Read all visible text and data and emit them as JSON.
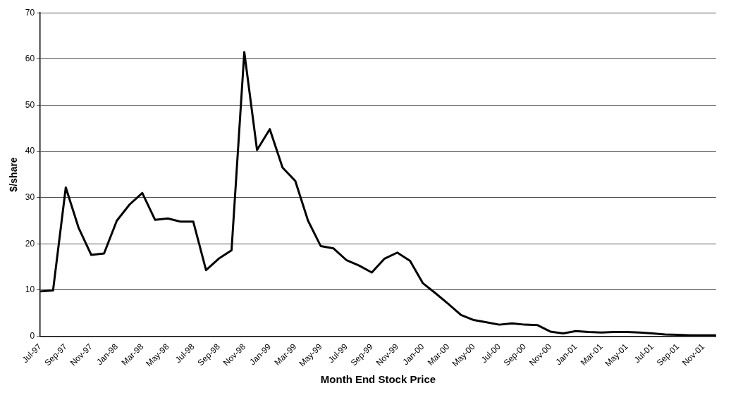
{
  "chart_data": {
    "type": "line",
    "xlabel": "Month End Stock Price",
    "ylabel": "$/share",
    "categories": [
      "Jul-97",
      null,
      "Sep-97",
      null,
      "Nov-97",
      null,
      "Jan-98",
      null,
      "Mar-98",
      null,
      "May-98",
      null,
      "Jul-98",
      null,
      "Sep-98",
      null,
      "Nov-98",
      null,
      "Jan-99",
      null,
      "Mar-99",
      null,
      "May-99",
      null,
      "Jul-99",
      null,
      "Sep-99",
      null,
      "Nov-99",
      null,
      "Jan-00",
      null,
      "Mar-00",
      null,
      "May-00",
      null,
      "Jul-00",
      null,
      "Sep-00",
      null,
      "Nov-00",
      null,
      "Jan-01",
      null,
      "Mar-01",
      null,
      "May-01",
      null,
      "Jul-01",
      null,
      "Sep-01",
      null,
      "Nov-01",
      null
    ],
    "series": [
      {
        "color": "#000000",
        "values": [
          9.7,
          9.9,
          32.2,
          23.5,
          17.6,
          17.9,
          25,
          28.5,
          31,
          25.2,
          25.5,
          24.8,
          24.8,
          14.3,
          16.8,
          18.6,
          61.5,
          40.3,
          44.8,
          36.5,
          33.6,
          25,
          19.5,
          19,
          16.5,
          15.3,
          13.8,
          16.8,
          18.1,
          16.3,
          11.5,
          9.3,
          7,
          4.6,
          3.5,
          3,
          2.5,
          2.8,
          2.5,
          2.4,
          1,
          0.6,
          1.1,
          0.9,
          0.8,
          0.9,
          0.9,
          0.8,
          0.6,
          0.4,
          0.3,
          0.2,
          0.2,
          0.2
        ]
      }
    ],
    "ylim": [
      0,
      70
    ],
    "yticks": [
      0,
      10,
      20,
      30,
      40,
      50,
      60,
      70
    ],
    "grid": "y",
    "legend": false,
    "marker": "none",
    "line_style": "solid"
  }
}
